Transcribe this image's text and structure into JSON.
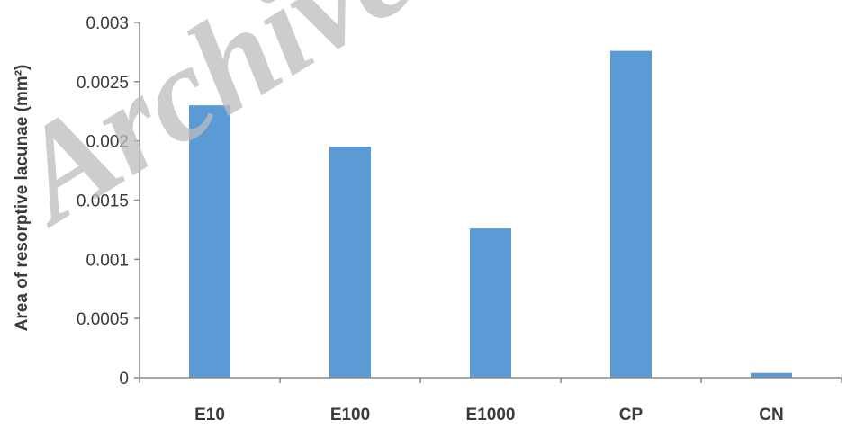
{
  "chart_data": {
    "type": "bar",
    "categories": [
      "E10",
      "E100",
      "E1000",
      "CP",
      "CN"
    ],
    "values": [
      0.0023,
      0.00195,
      0.00126,
      0.00276,
      4e-05
    ],
    "ylabel": "Area of resorptive lacunae (mm²)",
    "xlabel": "",
    "ylim": [
      0,
      0.003
    ],
    "yticks": [
      0,
      0.0005,
      0.001,
      0.0015,
      0.002,
      0.0025,
      0.003
    ],
    "ytick_labels": [
      "0",
      "0.0005",
      "0.001",
      "0.0015",
      "0.002",
      "0.0025",
      "0.003"
    ],
    "bar_color": "#5b9bd5",
    "grid": false,
    "legend": "none"
  },
  "watermark": "Archive"
}
